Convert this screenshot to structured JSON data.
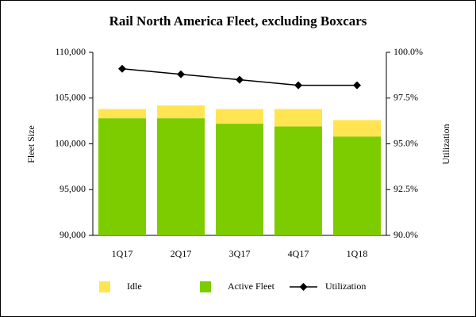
{
  "chart_data": {
    "type": "bar",
    "title": "Rail North America Fleet, excluding Boxcars",
    "y_label": "Fleet Size",
    "y2_label": "Utilization",
    "categories": [
      "1Q17",
      "2Q17",
      "3Q17",
      "4Q17",
      "1Q18"
    ],
    "series": [
      {
        "name": "Idle",
        "type": "bar",
        "color": "#ffe552",
        "values": [
          1000,
          1400,
          1600,
          1900,
          1800
        ]
      },
      {
        "name": "Active Fleet",
        "type": "bar",
        "color": "#7dcc00",
        "values": [
          102800,
          102800,
          102200,
          101900,
          100800
        ]
      },
      {
        "name": "Utilization",
        "type": "line",
        "axis": "y2",
        "color": "#000000",
        "values": [
          99.1,
          98.8,
          98.5,
          98.2,
          98.2
        ]
      }
    ],
    "stacked": true,
    "ylim": [
      90000,
      110000
    ],
    "yticks": [
      {
        "value": 90000,
        "label": "90,000"
      },
      {
        "value": 95000,
        "label": "95,000"
      },
      {
        "value": 100000,
        "label": "100,000"
      },
      {
        "value": 105000,
        "label": "105,000"
      },
      {
        "value": 110000,
        "label": "110,000"
      }
    ],
    "y2lim": [
      90,
      100
    ],
    "y2ticks": [
      {
        "value": 90,
        "label": "90.0%"
      },
      {
        "value": 92.5,
        "label": "92.5%"
      },
      {
        "value": 95,
        "label": "95.0%"
      },
      {
        "value": 97.5,
        "label": "97.5%"
      },
      {
        "value": 100,
        "label": "100.0%"
      }
    ],
    "grid": false,
    "legend": "bottom"
  }
}
